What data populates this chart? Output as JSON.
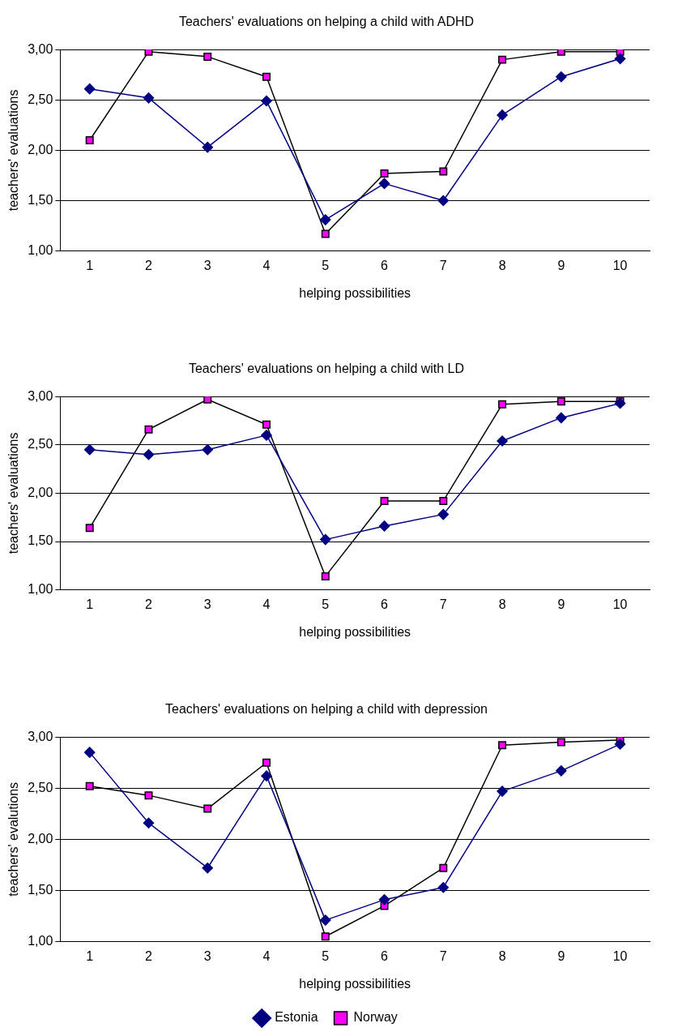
{
  "chart_data": [
    {
      "type": "line",
      "title": "Teachers' evaluations on helping a child with ADHD",
      "xlabel": "helping possibilities",
      "ylabel": "teachers' evaluations",
      "categories": [
        "1",
        "2",
        "3",
        "4",
        "5",
        "6",
        "7",
        "8",
        "9",
        "10"
      ],
      "series": [
        {
          "color": "#000080",
          "marker": "diamond",
          "values": [
            2.61,
            2.52,
            2.03,
            2.49,
            1.31,
            1.67,
            1.5,
            2.35,
            2.73,
            2.91
          ]
        },
        {
          "color": "#000000",
          "colors": [
            "#ff00ff",
            "#ff00ff",
            "#ff00ff",
            "#ff00ff",
            "#ff00ff",
            "#ff00ff",
            "#ff00ff",
            "#ff00ff",
            "#ff00ff",
            "#ff00ff"
          ],
          "marker": "square",
          "values": [
            2.1,
            2.98,
            2.93,
            2.73,
            1.17,
            1.77,
            1.79,
            2.9,
            2.98,
            2.98
          ]
        }
      ],
      "ylim": [
        1,
        3
      ],
      "yticks": [
        {
          "value": 1,
          "label": "1,00"
        },
        {
          "value": 1.5,
          "label": "1,50"
        },
        {
          "value": 2,
          "label": "2,00"
        },
        {
          "value": 2.5,
          "label": "2,50"
        },
        {
          "value": 3,
          "label": "3,00"
        }
      ],
      "grid": "y",
      "legend": false
    },
    {
      "type": "line",
      "title": "Teachers' evaluations on helping a child with LD",
      "xlabel": "helping possibilities",
      "ylabel": "teachers' evaluations",
      "categories": [
        "1",
        "2",
        "3",
        "4",
        "5",
        "6",
        "7",
        "8",
        "9",
        "10"
      ],
      "series": [
        {
          "color": "#000080",
          "marker": "diamond",
          "values": [
            2.45,
            2.4,
            2.45,
            2.6,
            1.52,
            1.66,
            1.78,
            2.54,
            2.78,
            2.93
          ]
        },
        {
          "color": "#000000",
          "colors": [
            "#ff00ff",
            "#ff00ff",
            "#ff00ff",
            "#ff00ff",
            "#ff00ff",
            "#ff00ff",
            "#ff00ff",
            "#ff00ff",
            "#ff00ff",
            "#ff00ff"
          ],
          "marker": "square",
          "values": [
            1.64,
            2.66,
            2.97,
            2.71,
            1.14,
            1.92,
            1.92,
            2.92,
            2.95,
            2.95
          ]
        }
      ],
      "ylim": [
        1,
        3
      ],
      "yticks": [
        {
          "value": 1,
          "label": "1,00"
        },
        {
          "value": 1.5,
          "label": "1,50"
        },
        {
          "value": 2,
          "label": "2,00"
        },
        {
          "value": 2.5,
          "label": "2,50"
        },
        {
          "value": 3,
          "label": "3,00"
        }
      ],
      "grid": "y",
      "legend": false
    },
    {
      "type": "line",
      "title": "Teachers' evaluations on helping a child with depression",
      "xlabel": "helping possibilities",
      "ylabel": "teachers' evalutions",
      "categories": [
        "1",
        "2",
        "3",
        "4",
        "5",
        "6",
        "7",
        "8",
        "9",
        "10"
      ],
      "series": [
        {
          "name": "Estonia",
          "color": "#000080",
          "marker": "diamond",
          "values": [
            2.85,
            2.16,
            1.72,
            2.62,
            1.21,
            1.41,
            1.53,
            2.47,
            2.67,
            2.93
          ]
        },
        {
          "name": "Norway",
          "color": "#000000",
          "colors": [
            "#ff00ff",
            "#ff00ff",
            "#ff00ff",
            "#ff00ff",
            "#ff00ff",
            "#ff00ff",
            "#ff00ff",
            "#ff00ff",
            "#ff00ff",
            "#ff00ff"
          ],
          "marker": "square",
          "values": [
            2.52,
            2.43,
            2.3,
            2.75,
            1.05,
            1.35,
            1.72,
            2.92,
            2.95,
            2.97
          ]
        }
      ],
      "ylim": [
        1,
        3
      ],
      "yticks": [
        {
          "value": 1,
          "label": "1,00"
        },
        {
          "value": 1.5,
          "label": "1,50"
        },
        {
          "value": 2,
          "label": "2,00"
        },
        {
          "value": 2.5,
          "label": "2,50"
        },
        {
          "value": 3,
          "label": "3,00"
        }
      ],
      "grid": "y",
      "legend": "bottom"
    }
  ]
}
